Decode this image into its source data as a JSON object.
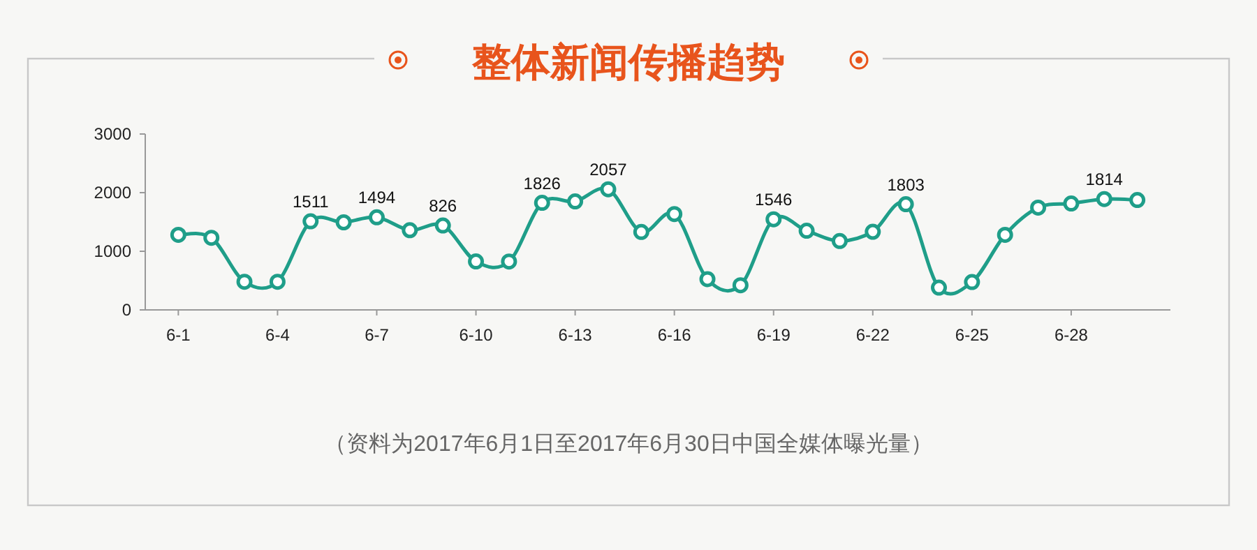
{
  "chart_data": {
    "type": "line",
    "title": "整体新闻传播趋势",
    "x": [
      "--06-01",
      "--06-02",
      "--06-03",
      "--06-04",
      "--06-05",
      "--06-06",
      "--06-07",
      "--06-08",
      "--06-09",
      "--06-10",
      "--06-11",
      "--06-12",
      "--06-13",
      "--06-14",
      "--06-15",
      "--06-16",
      "--06-17",
      "--06-18",
      "--06-19",
      "--06-20",
      "--06-21",
      "--06-22",
      "--06-23",
      "--06-24",
      "--06-25",
      "--06-26",
      "--06-27",
      "--06-28",
      "--06-29",
      "--06-30"
    ],
    "series": [
      {
        "color": "#1f9e89",
        "values": [
          1280,
          1230,
          480,
          480,
          1511,
          1494,
          1580,
          1360,
          1440,
          826,
          825,
          1826,
          1850,
          2057,
          1330,
          1635,
          525,
          420,
          1546,
          1350,
          1175,
          1333,
          1803,
          380,
          475,
          1280,
          1745,
          1814,
          1890,
          1874
        ]
      }
    ],
    "ylim": [
      0,
      3000
    ],
    "yticks": [
      0,
      1000,
      2000,
      3000
    ],
    "xlim": [
      "--05-31",
      "--07-01"
    ],
    "xticks": [
      {
        "value": "--06-01",
        "label": "6-1"
      },
      {
        "value": "--06-04",
        "label": "6-4"
      },
      {
        "value": "--06-07",
        "label": "6-7"
      },
      {
        "value": "--06-10",
        "label": "6-10"
      },
      {
        "value": "--06-13",
        "label": "6-13"
      },
      {
        "value": "--06-16",
        "label": "6-16"
      },
      {
        "value": "--06-19",
        "label": "6-19"
      },
      {
        "value": "--06-22",
        "label": "6-22"
      },
      {
        "value": "--06-25",
        "label": "6-25"
      },
      {
        "value": "--06-28",
        "label": "6-28"
      }
    ],
    "marker": "circle",
    "line_style": "solid",
    "grid": false,
    "annotations": [
      {
        "text": "1511",
        "x": "--06-05",
        "y": 1511
      },
      {
        "text": "1494",
        "x": "--06-07",
        "y": 1580
      },
      {
        "text": "826",
        "x": "--06-09",
        "y": 1440
      },
      {
        "text": "1826",
        "x": "--06-12",
        "y": 1826
      },
      {
        "text": "2057",
        "x": "--06-14",
        "y": 2057
      },
      {
        "text": "1546",
        "x": "--06-19",
        "y": 1546
      },
      {
        "text": "1803",
        "x": "--06-23",
        "y": 1803
      },
      {
        "text": "1814",
        "x": "--06-29",
        "y": 1890
      },
      "（资料为2017年6月1日至2017年6月30日中国全媒体曝光量）"
    ]
  }
}
